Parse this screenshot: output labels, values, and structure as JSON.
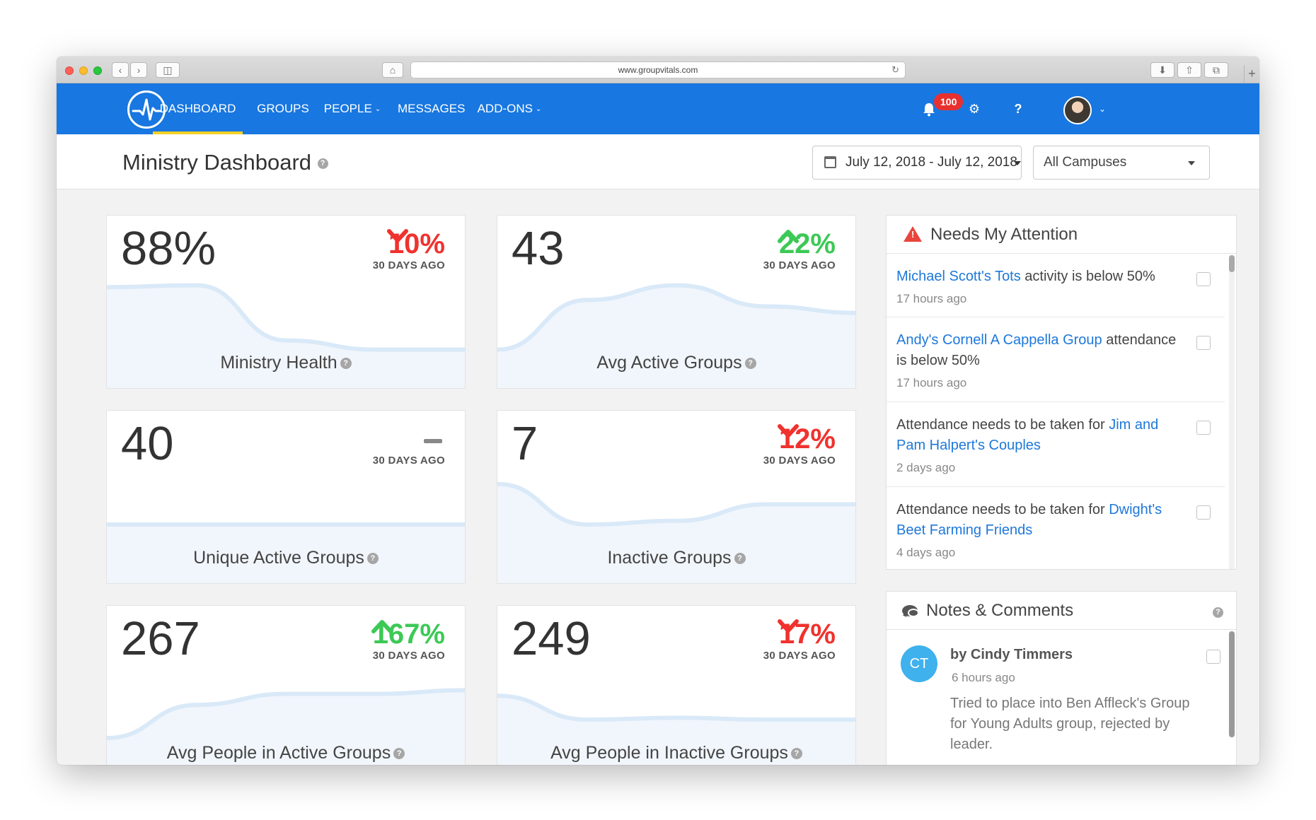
{
  "browser": {
    "url": "www.groupvitals.com"
  },
  "nav": {
    "items": [
      {
        "label": "DASHBOARD"
      },
      {
        "label": "GROUPS"
      },
      {
        "label": "PEOPLE"
      },
      {
        "label": "MESSAGES"
      },
      {
        "label": "ADD-ONS"
      }
    ],
    "notification_count": "100",
    "help_label": "?"
  },
  "header": {
    "title": "Ministry Dashboard",
    "date_range": "July 12, 2018 - July 12, 2018",
    "campus": "All Campuses"
  },
  "cards": [
    {
      "value": "88%",
      "change": "10%",
      "trend": "down",
      "period": "30 DAYS AGO",
      "label": "Ministry Health"
    },
    {
      "value": "43",
      "change": "22%",
      "trend": "up",
      "period": "30 DAYS AGO",
      "label": "Avg Active Groups"
    },
    {
      "value": "40",
      "change": "",
      "trend": "flat",
      "period": "30 DAYS AGO",
      "label": "Unique Active Groups"
    },
    {
      "value": "7",
      "change": "12%",
      "trend": "down",
      "period": "30 DAYS AGO",
      "label": "Inactive Groups"
    },
    {
      "value": "267",
      "change": "167%",
      "trend": "up",
      "period": "30 DAYS AGO",
      "label": "Avg People in Active Groups"
    },
    {
      "value": "249",
      "change": "17%",
      "trend": "down",
      "period": "30 DAYS AGO",
      "label": "Avg People in Inactive Groups"
    }
  ],
  "attention": {
    "title": "Needs My Attention",
    "items": [
      {
        "pre": "",
        "link": "Michael Scott's Tots",
        "post": " activity is below 50%",
        "time": "17 hours ago"
      },
      {
        "pre": "",
        "link": "Andy's Cornell A Cappella Group",
        "post": " attendance is below 50%",
        "time": "17 hours ago"
      },
      {
        "pre": "Attendance needs to be taken for ",
        "link": "Jim and Pam Halpert's Couples",
        "post": "",
        "time": "2 days ago"
      },
      {
        "pre": "Attendance needs to be taken for ",
        "link": "Dwight's Beet Farming Friends",
        "post": "",
        "time": "4 days ago"
      }
    ]
  },
  "notes": {
    "title": "Notes & Comments",
    "items": [
      {
        "initials": "CT",
        "author": "by Cindy Timmers",
        "time": "6 hours ago",
        "text": "Tried to place into Ben Affleck's Group for Young Adults group, rejected by leader."
      }
    ]
  },
  "colors": {
    "brand": "#1877e0",
    "active_underline": "#f5d028",
    "down": "#f0322e",
    "up": "#3cc955",
    "link": "#1d78d9"
  },
  "sparklines": [
    [
      0.76,
      0.78,
      0.18,
      0.08,
      0.08
    ],
    [
      0.08,
      0.62,
      0.78,
      0.55,
      0.48
    ],
    [
      0.3,
      0.3,
      0.3,
      0.3,
      0.3
    ],
    [
      0.74,
      0.3,
      0.34,
      0.52,
      0.52
    ],
    [
      0.1,
      0.46,
      0.58,
      0.58,
      0.62
    ],
    [
      0.56,
      0.3,
      0.32,
      0.3,
      0.3
    ]
  ]
}
